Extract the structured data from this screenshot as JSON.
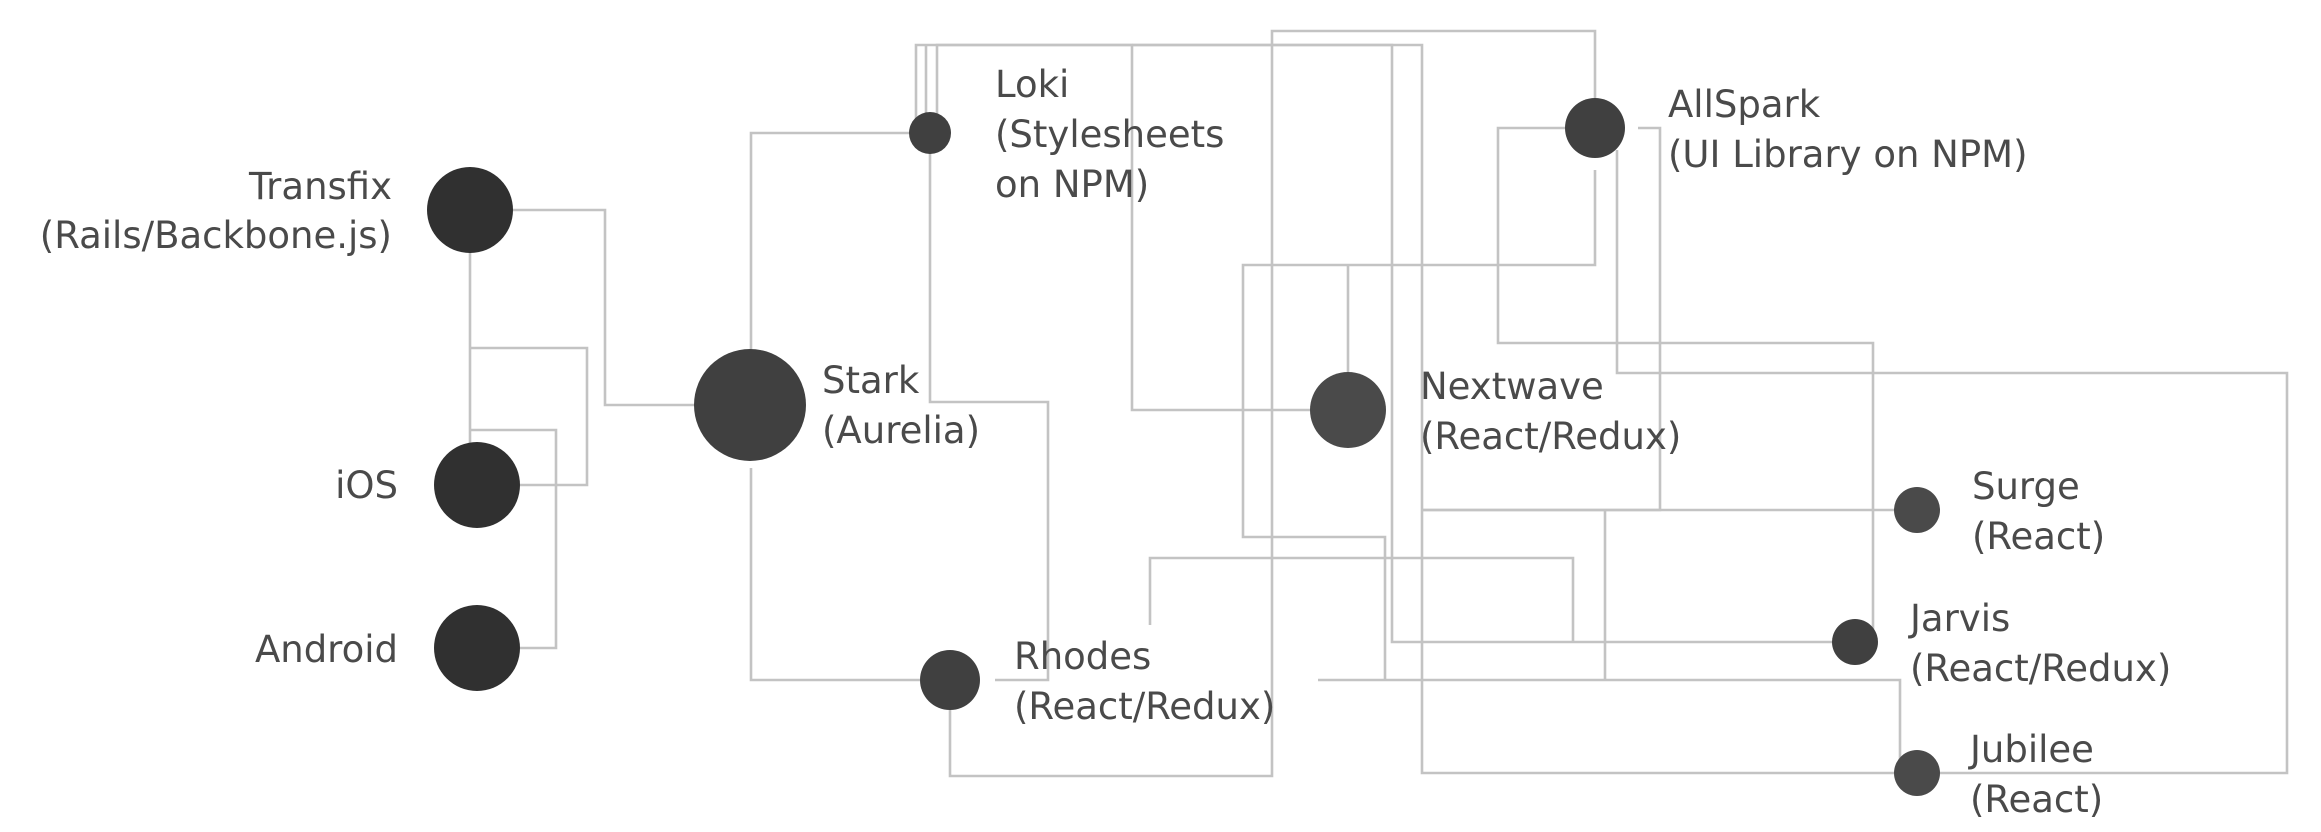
{
  "diagram": {
    "colors": {
      "edge": "#c3c3c3",
      "label": "#4a4a4a",
      "node_dark": "#303030",
      "node_mid": "#404040",
      "node_light": "#4a4a4a"
    },
    "nodes": [
      {
        "id": "transfix",
        "name": "Transfix",
        "detail": "(Rails/Backbone.js)"
      },
      {
        "id": "ios",
        "name": "iOS",
        "detail": ""
      },
      {
        "id": "android",
        "name": "Android",
        "detail": ""
      },
      {
        "id": "stark",
        "name": "Stark",
        "detail": "(Aurelia)"
      },
      {
        "id": "loki",
        "name": "Loki",
        "detail": "(Stylesheets",
        "detail2": "on NPM)"
      },
      {
        "id": "rhodes",
        "name": "Rhodes",
        "detail": "(React/Redux)"
      },
      {
        "id": "nextwave",
        "name": "Nextwave",
        "detail": "(React/Redux)"
      },
      {
        "id": "allspark",
        "name": "AllSpark",
        "detail": "(UI Library on NPM)"
      },
      {
        "id": "surge",
        "name": "Surge",
        "detail": "(React)"
      },
      {
        "id": "jarvis",
        "name": "Jarvis",
        "detail": "(React/Redux)"
      },
      {
        "id": "jubilee",
        "name": "Jubilee",
        "detail": "(React)"
      }
    ]
  }
}
